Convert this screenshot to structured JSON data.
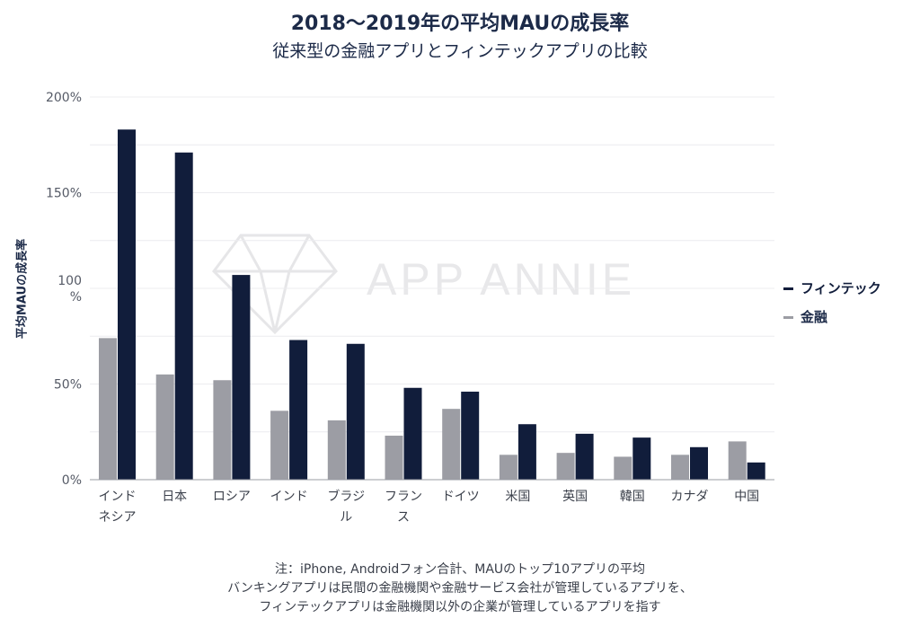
{
  "title": "2018～2019年の平均MAUの成長率",
  "subtitle": "従来型の金融アプリとフィンテックアプリの比較",
  "watermark": "APP ANNIE",
  "legend": [
    {
      "label": "フィンテック",
      "color": "#111d3b"
    },
    {
      "label": "金融",
      "color": "#9c9da4"
    }
  ],
  "notes": [
    "注：iPhone, Androidフォン合計、MAUのトップ10アプリの平均",
    "バンキングアプリは民間の金融機関や金融サービス会社が管理しているアプリを、",
    "フィンテックアプリは金融機関以外の企業が管理しているアプリを指す"
  ],
  "chart_data": {
    "type": "bar",
    "ylabel": "平均MAUの成長率",
    "ylim": [
      0,
      200
    ],
    "yticks": [
      "0%",
      "50%",
      "100\n%",
      "150%",
      "200%"
    ],
    "ytick_values": [
      0,
      50,
      100,
      150,
      200
    ],
    "grid": true,
    "legend_position": "right",
    "categories": [
      "インド\nネシア",
      "日本",
      "ロシア",
      "インド",
      "ブラジ\nル",
      "フラン\nス",
      "ドイツ",
      "米国",
      "英国",
      "韓国",
      "カナダ",
      "中国"
    ],
    "series": [
      {
        "name": "金融",
        "color": "#9c9da4",
        "values": [
          74,
          55,
          52,
          36,
          31,
          23,
          37,
          13,
          14,
          12,
          13,
          20
        ]
      },
      {
        "name": "フィンテック",
        "color": "#111d3b",
        "values": [
          183,
          171,
          107,
          73,
          71,
          48,
          46,
          29,
          24,
          22,
          17,
          9
        ]
      }
    ]
  }
}
